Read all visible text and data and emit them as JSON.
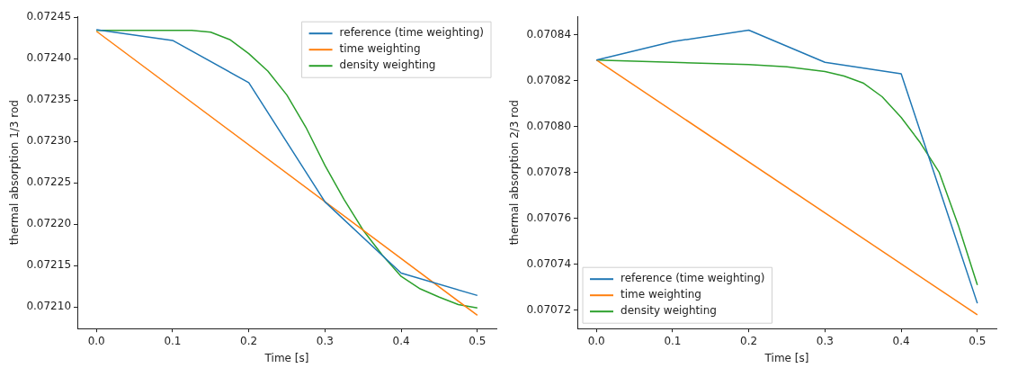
{
  "chart_data": [
    {
      "type": "line",
      "xlabel": "Time [s]",
      "ylabel": "thermal absorption 1/3 rod",
      "legend": "top right",
      "grid": false,
      "marker": "none",
      "line_style": "solid",
      "xlim": [
        -0.025,
        0.525
      ],
      "xticks": [
        {
          "value": 0,
          "label": "0.0"
        },
        0.1,
        0.2,
        0.3,
        0.4,
        0.5
      ],
      "ylim": [
        0.072074,
        0.072451
      ],
      "yticks": [
        {
          "value": 0.0721,
          "label": "0.07210"
        },
        0.07215,
        {
          "value": 0.0722,
          "label": "0.07220"
        },
        0.07225,
        {
          "value": 0.0723,
          "label": "0.07230"
        },
        0.07235,
        {
          "value": 0.0724,
          "label": "0.07240"
        },
        0.07245
      ],
      "series": [
        {
          "name": "reference (time weighting)",
          "color": "#1f77b4",
          "x": [
            0,
            0.1,
            0.2,
            0.3,
            0.4,
            0.5
          ],
          "values": [
            0.072435,
            0.072422,
            0.072371,
            0.072227,
            0.072141,
            0.072114
          ]
        },
        {
          "name": "time weighting",
          "color": "#ff7f0e",
          "x": [
            0,
            0.5
          ],
          "values": [
            0.072433,
            0.07209
          ]
        },
        {
          "name": "density weighting",
          "color": "#2ca02c",
          "x": [
            0,
            0.125,
            0.15,
            0.175,
            0.2,
            0.225,
            0.25,
            0.275,
            0.3,
            0.325,
            0.35,
            0.375,
            0.4,
            0.425,
            0.45,
            0.475,
            0.5
          ],
          "values": [
            0.072434,
            0.072434,
            0.072432,
            0.072423,
            0.072406,
            0.072385,
            0.072356,
            0.072317,
            0.072271,
            0.07223,
            0.072193,
            0.072163,
            0.072137,
            0.072122,
            0.072112,
            0.072103,
            0.072099
          ]
        }
      ]
    },
    {
      "type": "line",
      "xlabel": "Time [s]",
      "ylabel": "thermal absorption 2/3 rod",
      "legend": "bottom left",
      "grid": false,
      "marker": "none",
      "line_style": "solid",
      "xlim": [
        -0.025,
        0.525
      ],
      "xticks": [
        {
          "value": 0,
          "label": "0.0"
        },
        0.1,
        0.2,
        0.3,
        0.4,
        0.5
      ],
      "ylim": [
        0.070712,
        0.070848
      ],
      "yticks": [
        0.07072,
        0.07074,
        0.07076,
        0.07078,
        {
          "value": 0.0708,
          "label": "0.07080"
        },
        0.07082,
        0.07084
      ],
      "series": [
        {
          "name": "reference (time weighting)",
          "color": "#1f77b4",
          "x": [
            0,
            0.1,
            0.2,
            0.3,
            0.4,
            0.5
          ],
          "values": [
            0.070829,
            0.070837,
            0.070842,
            0.070828,
            0.070823,
            0.070723
          ]
        },
        {
          "name": "time weighting",
          "color": "#ff7f0e",
          "x": [
            0,
            0.5
          ],
          "values": [
            0.070829,
            0.070718
          ]
        },
        {
          "name": "density weighting",
          "color": "#2ca02c",
          "x": [
            0,
            0.1,
            0.2,
            0.25,
            0.3,
            0.325,
            0.35,
            0.375,
            0.4,
            0.425,
            0.45,
            0.475,
            0.5
          ],
          "values": [
            0.070829,
            0.070828,
            0.070827,
            0.070826,
            0.070824,
            0.070822,
            0.070819,
            0.070813,
            0.070804,
            0.070793,
            0.07078,
            0.070757,
            0.070731
          ]
        }
      ]
    }
  ]
}
